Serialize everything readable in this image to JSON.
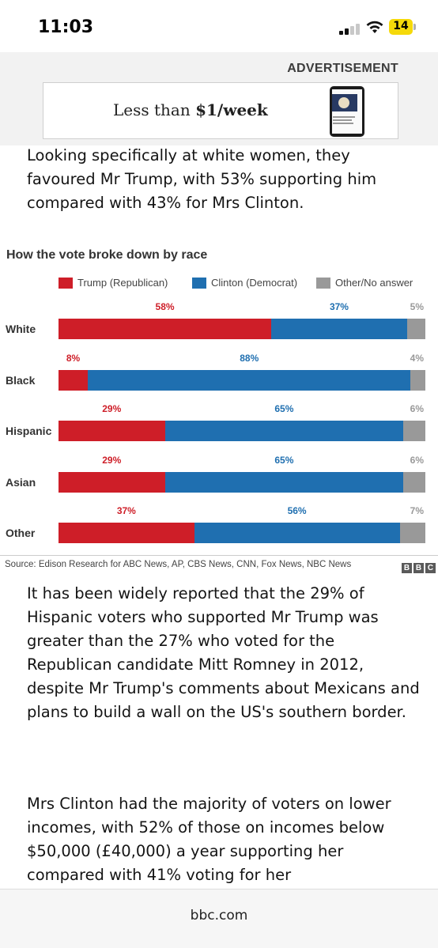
{
  "status": {
    "time": "11:03",
    "battery": "14"
  },
  "ad": {
    "label": "ADVERTISEMENT",
    "text_prefix": "Less than ",
    "text_bold": "$1/week"
  },
  "article": {
    "para1": "Looking specifically at white women, they favoured Mr Trump, with 53% supporting him compared with 43% for Mrs Clinton.",
    "para2": "It has been widely reported that the 29% of Hispanic voters who supported Mr Trump was greater than the 27% who voted for the Republican candidate Mitt Romney in 2012, despite Mr Trump's comments about Mexicans and plans to build a wall on the US's southern border.",
    "para3": "Mrs Clinton had the majority of voters on lower incomes, with 52% of those on incomes below $50,000 (£40,000) a year supporting her compared with 41% voting for her"
  },
  "chart_data": {
    "type": "bar",
    "stacked": true,
    "orientation": "horizontal",
    "title": "How the vote broke down by race",
    "categories": [
      "White",
      "Black",
      "Hispanic",
      "Asian",
      "Other"
    ],
    "series": [
      {
        "name": "Trump (Republican)",
        "color": "#ce1e28",
        "values": [
          58,
          8,
          29,
          29,
          37
        ]
      },
      {
        "name": "Clinton (Democrat)",
        "color": "#1f6fb0",
        "values": [
          37,
          88,
          65,
          65,
          56
        ]
      },
      {
        "name": "Other/No answer",
        "color": "#999999",
        "values": [
          5,
          4,
          6,
          6,
          7
        ]
      }
    ],
    "label_colors": [
      "#ce1e28",
      "#1f6fb0",
      "#999999"
    ],
    "legend": "top",
    "source": "Source: Edison Research for ABC News, AP, CBS News, CNN, Fox News, NBC News",
    "brand": [
      "B",
      "B",
      "C"
    ]
  },
  "footer": {
    "url": "bbc.com"
  }
}
